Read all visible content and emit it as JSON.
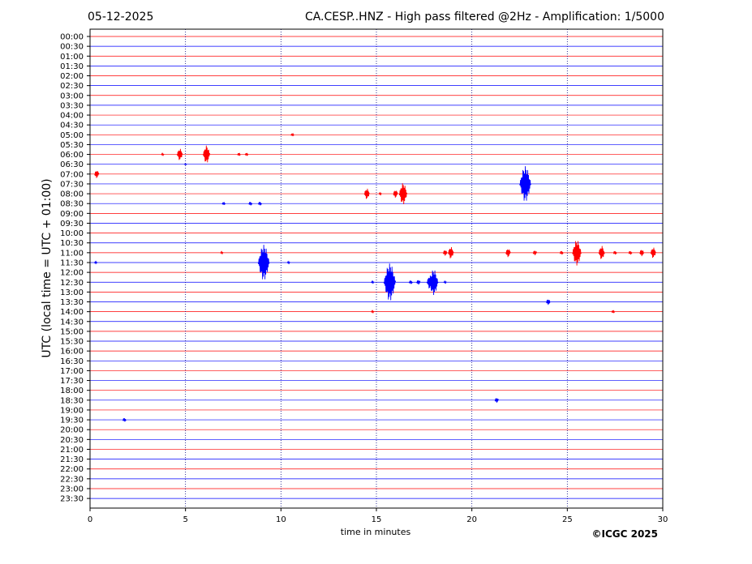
{
  "header": {
    "date": "05-12-2025",
    "title": "CA.CESP..HNZ - High pass filtered @2Hz - Amplification: 1/5000"
  },
  "footer": {
    "copyright": "©ICGC 2025"
  },
  "colors": {
    "red_trace": "#ff0000",
    "blue_trace": "#0000ff",
    "grid": "#000080",
    "frame": "#000000"
  },
  "chart_data": {
    "type": "line",
    "xlabel": "time in minutes",
    "ylabel": "UTC (local time = UTC + 01:00)",
    "xlim": [
      0,
      30
    ],
    "x_ticks": [
      "0",
      "5",
      "10",
      "15",
      "20",
      "25",
      "30"
    ],
    "x_tick_values": [
      0,
      5,
      10,
      15,
      20,
      25,
      30
    ],
    "grid_x": [
      5,
      10,
      15,
      20,
      25
    ],
    "grid_style": "dotted vertical",
    "row_labels": [
      "00:00",
      "00:30",
      "01:00",
      "01:30",
      "02:00",
      "02:30",
      "03:00",
      "03:30",
      "04:00",
      "04:30",
      "05:00",
      "05:30",
      "06:00",
      "06:30",
      "07:00",
      "07:30",
      "08:00",
      "08:30",
      "09:00",
      "09:30",
      "10:00",
      "10:30",
      "11:00",
      "11:30",
      "12:00",
      "12:30",
      "13:00",
      "13:30",
      "14:00",
      "14:30",
      "15:00",
      "15:30",
      "16:00",
      "16:30",
      "17:00",
      "17:30",
      "18:00",
      "18:30",
      "19:00",
      "19:30",
      "20:00",
      "20:30",
      "21:00",
      "21:30",
      "22:00",
      "22:30",
      "23:00",
      "23:30"
    ],
    "row_colors": "alternating red (even rows) and blue (odd rows)",
    "events": [
      {
        "row": "05:00",
        "minute": 10.6,
        "amplitude": 0.15
      },
      {
        "row": "06:00",
        "minute": 3.8,
        "amplitude": 0.1
      },
      {
        "row": "06:00",
        "minute": 4.7,
        "amplitude": 0.6
      },
      {
        "row": "06:00",
        "minute": 6.1,
        "amplitude": 0.9
      },
      {
        "row": "06:00",
        "minute": 7.8,
        "amplitude": 0.15
      },
      {
        "row": "06:00",
        "minute": 8.2,
        "amplitude": 0.15
      },
      {
        "row": "06:30",
        "minute": 5.0,
        "amplitude": 0.05
      },
      {
        "row": "07:00",
        "minute": 0.35,
        "amplitude": 0.4
      },
      {
        "row": "07:30",
        "minute": 22.8,
        "amplitude": 1.8
      },
      {
        "row": "08:00",
        "minute": 14.5,
        "amplitude": 0.55
      },
      {
        "row": "08:00",
        "minute": 15.2,
        "amplitude": 0.1
      },
      {
        "row": "08:00",
        "minute": 16.0,
        "amplitude": 0.4
      },
      {
        "row": "08:00",
        "minute": 16.4,
        "amplitude": 1.1
      },
      {
        "row": "08:30",
        "minute": 7.0,
        "amplitude": 0.15
      },
      {
        "row": "08:30",
        "minute": 8.4,
        "amplitude": 0.2
      },
      {
        "row": "08:30",
        "minute": 8.9,
        "amplitude": 0.2
      },
      {
        "row": "11:00",
        "minute": 6.9,
        "amplitude": 0.1
      },
      {
        "row": "11:00",
        "minute": 18.6,
        "amplitude": 0.3
      },
      {
        "row": "11:00",
        "minute": 18.9,
        "amplitude": 0.6
      },
      {
        "row": "11:00",
        "minute": 21.9,
        "amplitude": 0.45
      },
      {
        "row": "11:00",
        "minute": 23.3,
        "amplitude": 0.25
      },
      {
        "row": "11:00",
        "minute": 24.7,
        "amplitude": 0.2
      },
      {
        "row": "11:00",
        "minute": 25.5,
        "amplitude": 1.3
      },
      {
        "row": "11:00",
        "minute": 26.8,
        "amplitude": 0.7
      },
      {
        "row": "11:00",
        "minute": 27.5,
        "amplitude": 0.2
      },
      {
        "row": "11:00",
        "minute": 28.3,
        "amplitude": 0.2
      },
      {
        "row": "11:00",
        "minute": 28.9,
        "amplitude": 0.35
      },
      {
        "row": "11:00",
        "minute": 29.5,
        "amplitude": 0.55
      },
      {
        "row": "11:30",
        "minute": 0.3,
        "amplitude": 0.1
      },
      {
        "row": "11:30",
        "minute": 9.1,
        "amplitude": 1.8
      },
      {
        "row": "11:30",
        "minute": 10.4,
        "amplitude": 0.1
      },
      {
        "row": "12:30",
        "minute": 14.8,
        "amplitude": 0.1
      },
      {
        "row": "12:30",
        "minute": 15.7,
        "amplitude": 1.9
      },
      {
        "row": "12:30",
        "minute": 16.8,
        "amplitude": 0.2
      },
      {
        "row": "12:30",
        "minute": 17.2,
        "amplitude": 0.25
      },
      {
        "row": "12:30",
        "minute": 17.8,
        "amplitude": 0.7
      },
      {
        "row": "12:30",
        "minute": 18.0,
        "amplitude": 1.3
      },
      {
        "row": "12:30",
        "minute": 18.6,
        "amplitude": 0.1
      },
      {
        "row": "13:30",
        "minute": 24.0,
        "amplitude": 0.3
      },
      {
        "row": "14:00",
        "minute": 14.8,
        "amplitude": 0.1
      },
      {
        "row": "14:00",
        "minute": 27.4,
        "amplitude": 0.15
      },
      {
        "row": "18:30",
        "minute": 21.3,
        "amplitude": 0.25
      },
      {
        "row": "19:30",
        "minute": 1.8,
        "amplitude": 0.2
      }
    ]
  }
}
